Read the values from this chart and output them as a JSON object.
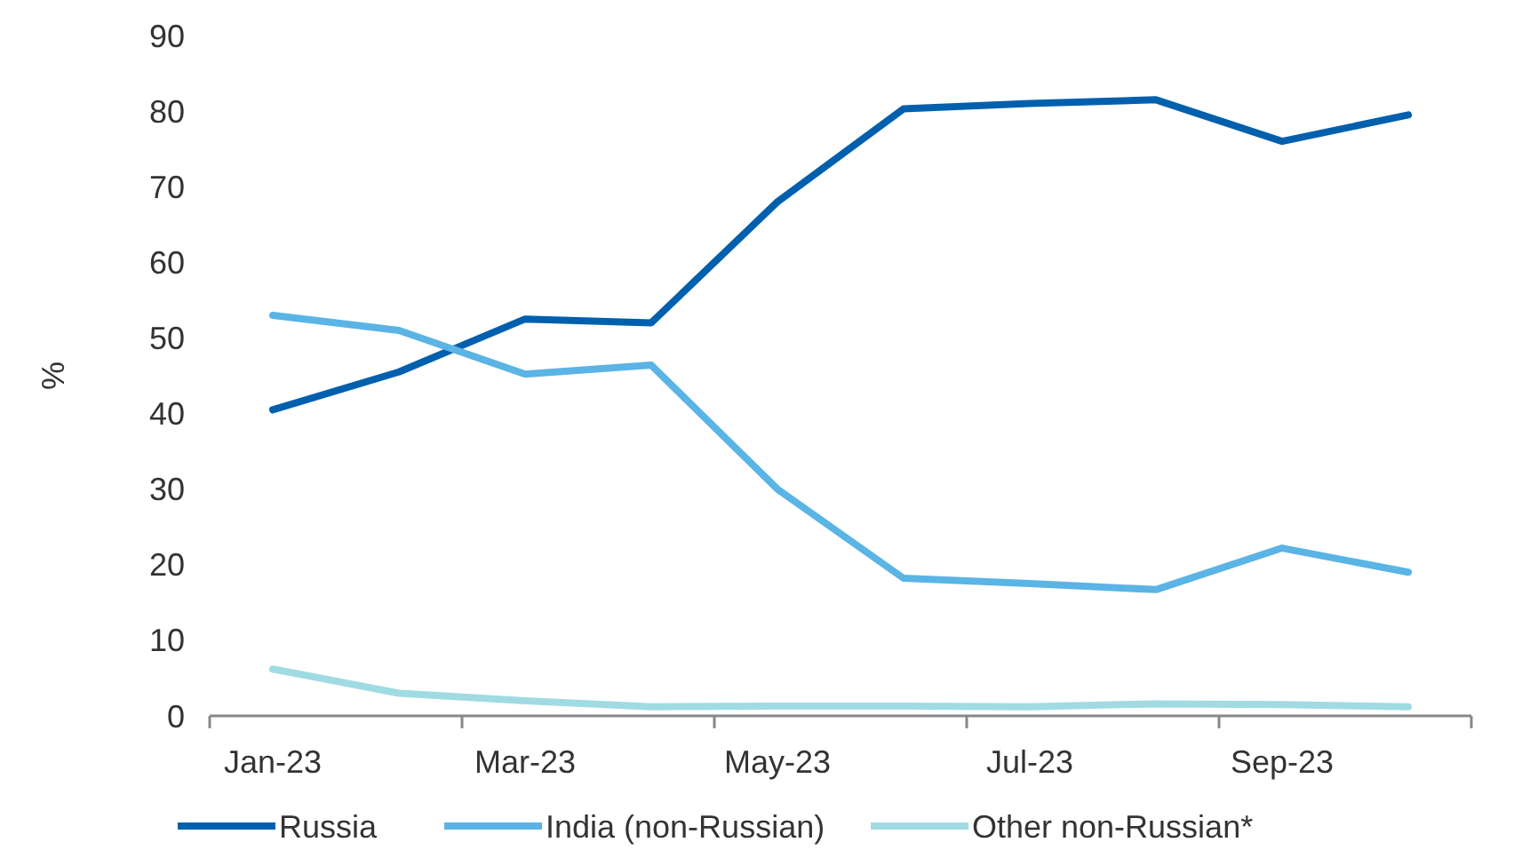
{
  "chart_data": {
    "type": "line",
    "ylabel": "%",
    "categories": [
      "Jan-23",
      null,
      "Mar-23",
      null,
      "May-23",
      null,
      "Jul-23",
      null,
      "Sep-23",
      null
    ],
    "ylim": [
      0,
      90
    ],
    "yticks": [
      0,
      10,
      20,
      30,
      40,
      50,
      60,
      70,
      80,
      90
    ],
    "grid": false,
    "legend": "bottom",
    "marker": "none",
    "line_style": "solid",
    "series": [
      {
        "name": "Russia",
        "color": "#0060ae",
        "values": [
          40.5,
          45.5,
          52.5,
          52,
          68,
          80.3,
          81,
          81.5,
          76,
          79.5
        ]
      },
      {
        "name": "India (non-Russian)",
        "color": "#5ab4e5",
        "values": [
          53,
          51,
          45.2,
          46.4,
          30,
          18.2,
          17.5,
          16.7,
          22.2,
          19
        ]
      },
      {
        "name": "Other non-Russian*",
        "color": "#a0dbe3",
        "values": [
          6.2,
          3,
          2,
          1.2,
          1.3,
          1.3,
          1.2,
          1.6,
          1.5,
          1.2
        ]
      }
    ]
  }
}
